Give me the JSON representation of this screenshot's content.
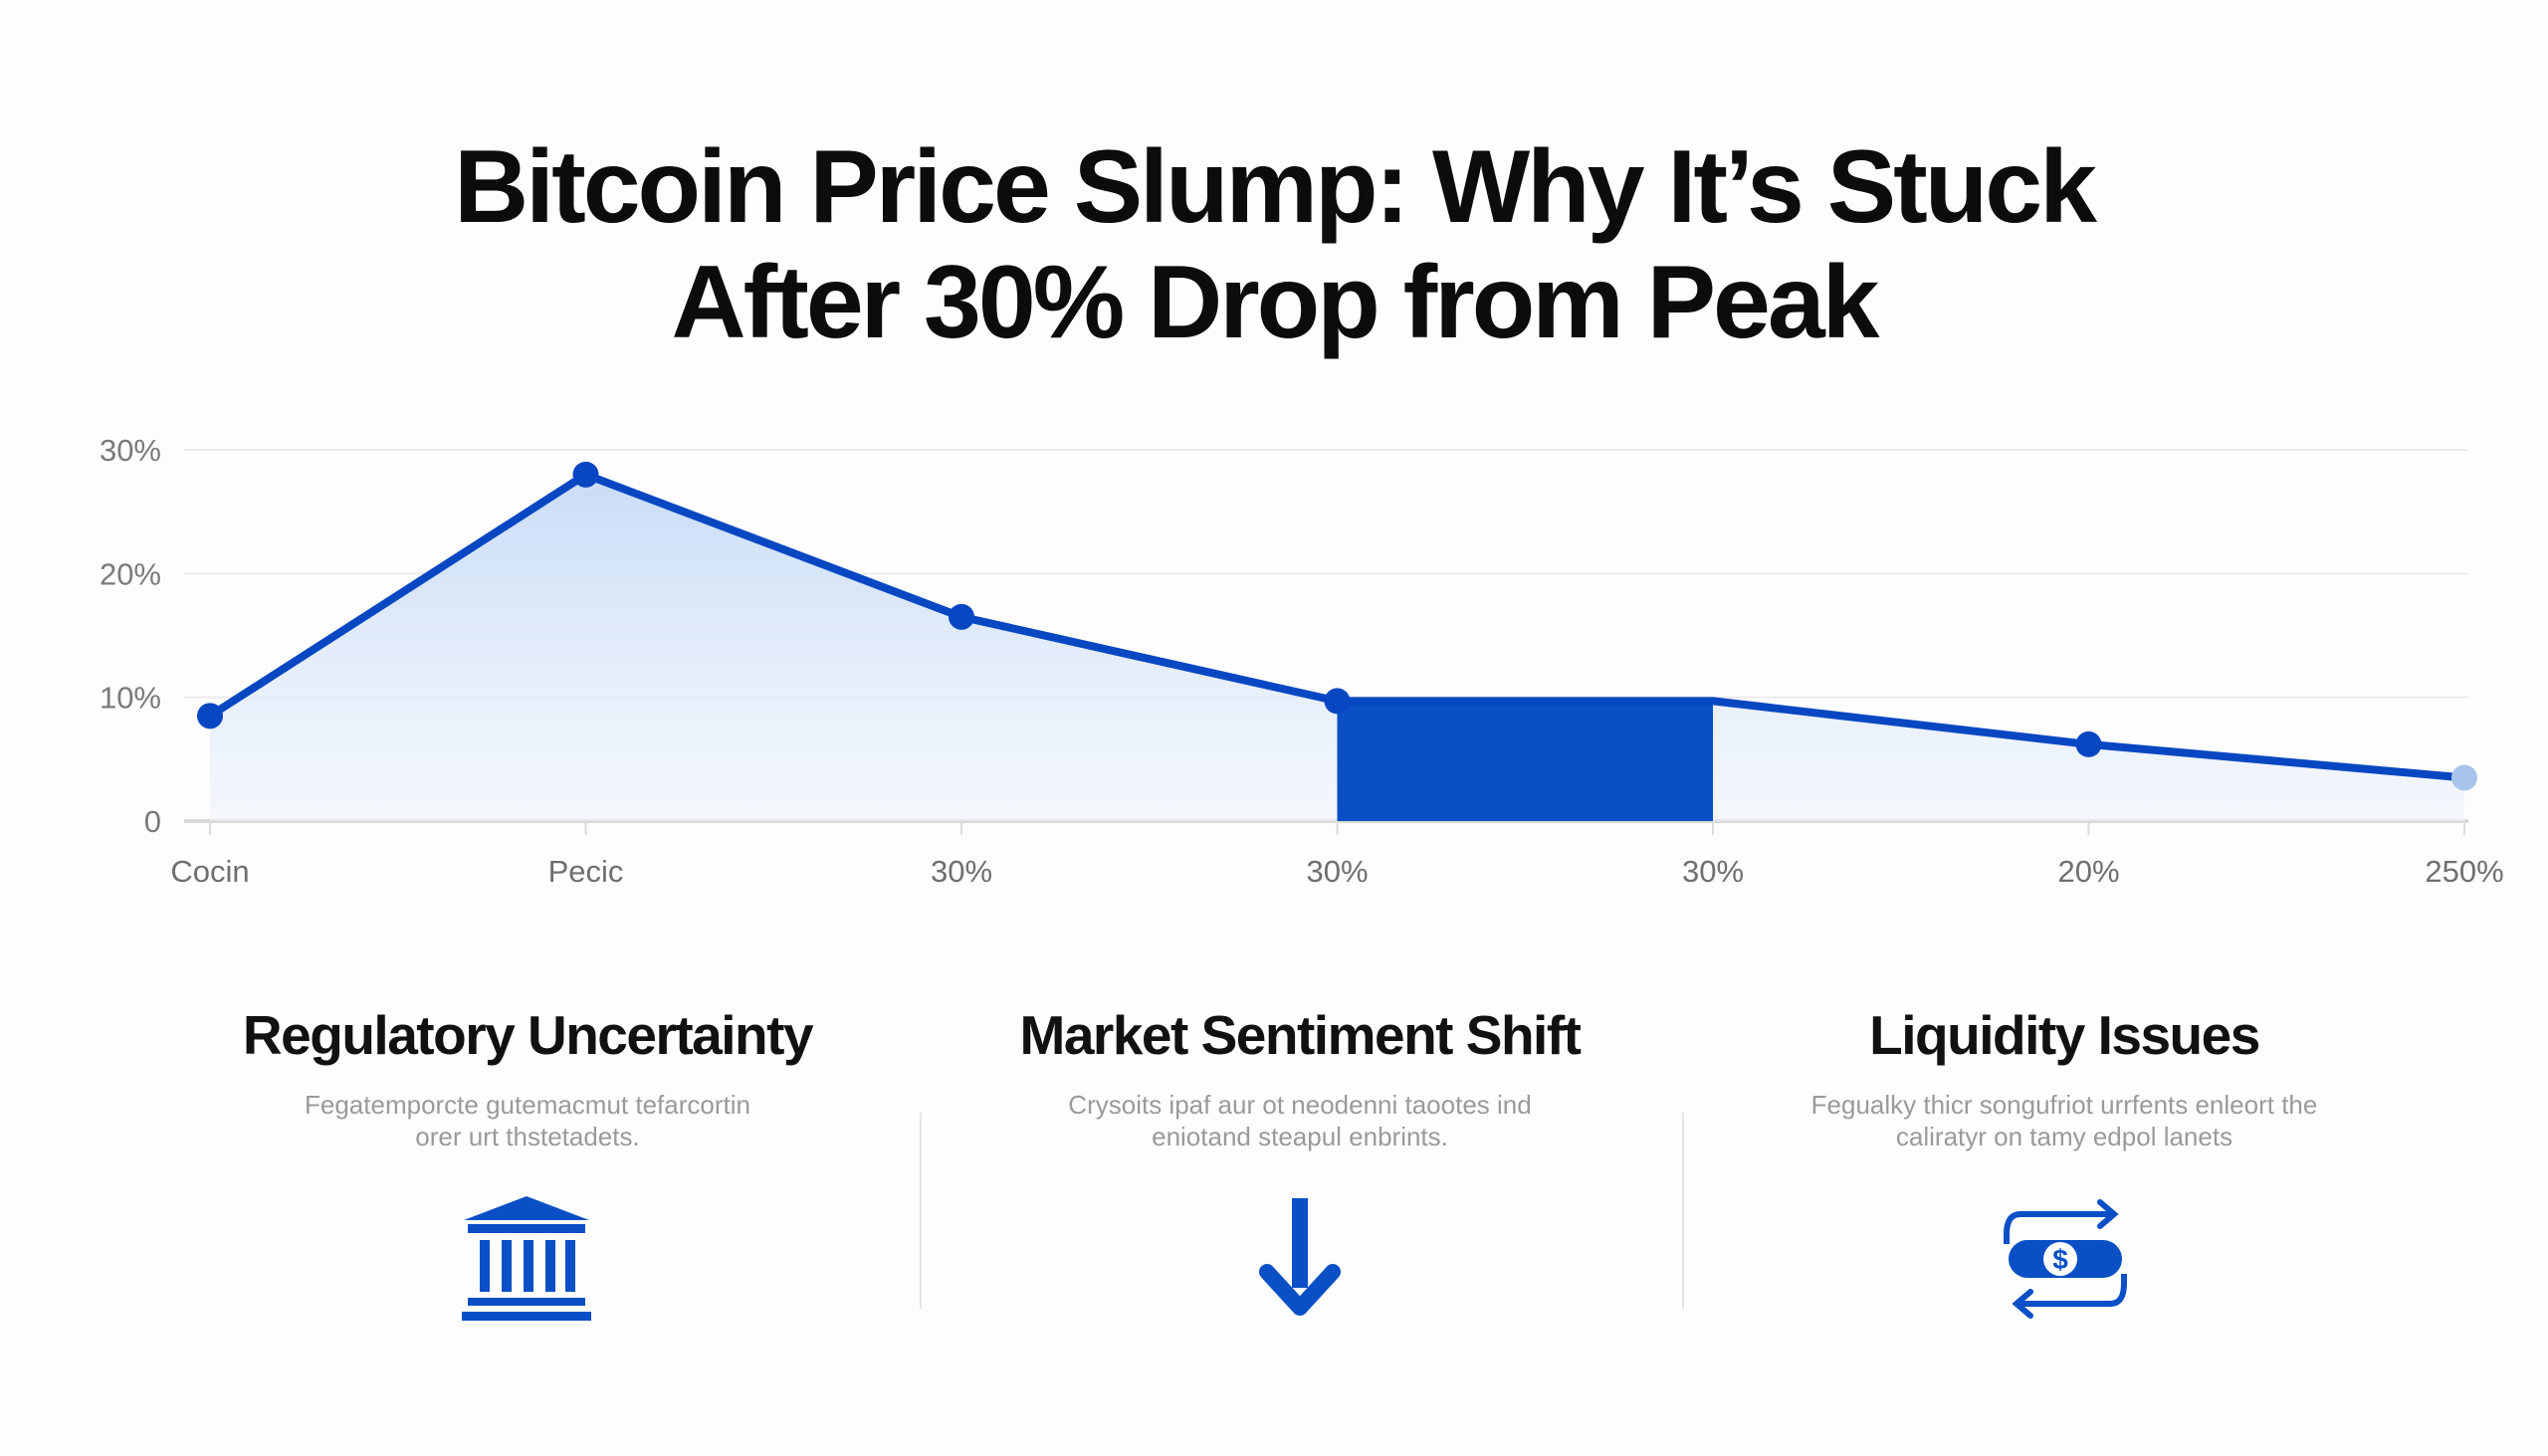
{
  "title": {
    "line1": "Bitcoin Price Slump: Why It’s Stuck",
    "line2": "After 30% Drop from Peak"
  },
  "chart_data": {
    "type": "line",
    "title": "Bitcoin Price Slump: Why It’s Stuck After 30% Drop from Peak",
    "categories": [
      "Cocin",
      "Pecic",
      "30%",
      "30%",
      "30%",
      "20%",
      "250%"
    ],
    "values": [
      8.5,
      28.0,
      16.5,
      9.7,
      9.7,
      6.2,
      3.5
    ],
    "highlight_bar": {
      "from_index": 3,
      "to_index": 4,
      "value": 9.7
    },
    "yticks": [
      "0",
      "10%",
      "20%",
      "30%"
    ],
    "ytick_values": [
      0,
      10,
      20,
      30
    ],
    "ylim": [
      0,
      30
    ],
    "xlabel": "",
    "ylabel": "",
    "grid": true,
    "colors": {
      "line": "#0747c2",
      "fill": "#c9dcf6",
      "bar": "#0a4fc6",
      "last_point": "#a9c4ea"
    }
  },
  "factors": [
    {
      "title": "Regulatory Uncertainty",
      "desc_line1": "Fegatemporcte gutemacmut tefarcortin",
      "desc_line2": "orer urt thstetadets.",
      "icon": "bank-building-icon"
    },
    {
      "title": "Market Sentiment Shift",
      "desc_line1": "Crysoits ipaf aur ot neodenni taootes ind",
      "desc_line2": "eniotand steapul enbrints.",
      "icon": "arrow-down-icon"
    },
    {
      "title": "Liquidity Issues",
      "desc_line1": "Fegualky thicr songufriot urrfents enleort the",
      "desc_line2": "caliratyr on tamy edpol lanets",
      "icon": "money-exchange-icon"
    }
  ]
}
